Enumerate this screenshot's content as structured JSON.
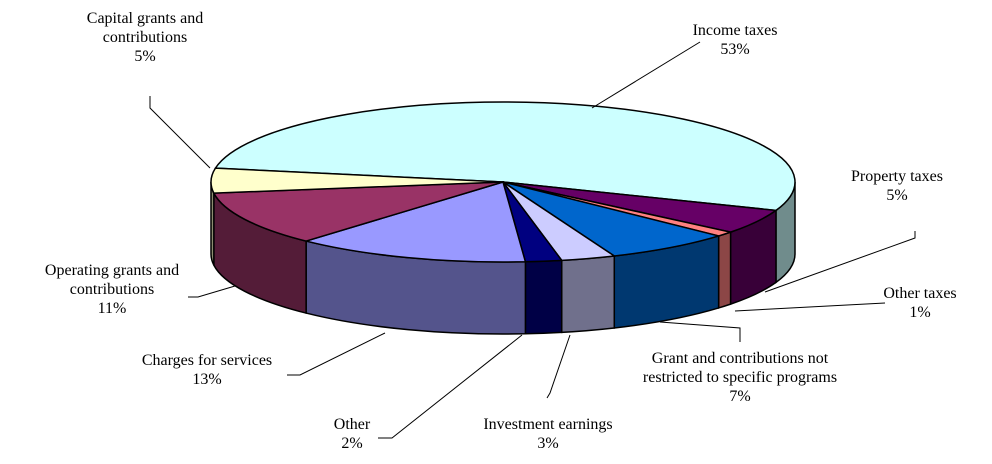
{
  "chart_data": {
    "type": "pie",
    "categories": [
      "Income taxes",
      "Property taxes",
      "Other taxes",
      "Grant and contributions not restricted to specific programs",
      "Investment earnings",
      "Other",
      "Charges for services",
      "Operating grants and contributions",
      "Capital grants and contributions"
    ],
    "values": [
      53,
      5,
      1,
      7,
      3,
      2,
      13,
      11,
      5
    ],
    "value_labels": [
      "53%",
      "5%",
      "1%",
      "7%",
      "3%",
      "2%",
      "13%",
      "11%",
      "5%"
    ],
    "colors": [
      "#ccffff",
      "#660066",
      "#ff8080",
      "#0066cc",
      "#ccccff",
      "#000080",
      "#9999ff",
      "#993366",
      "#ffffcc"
    ]
  }
}
